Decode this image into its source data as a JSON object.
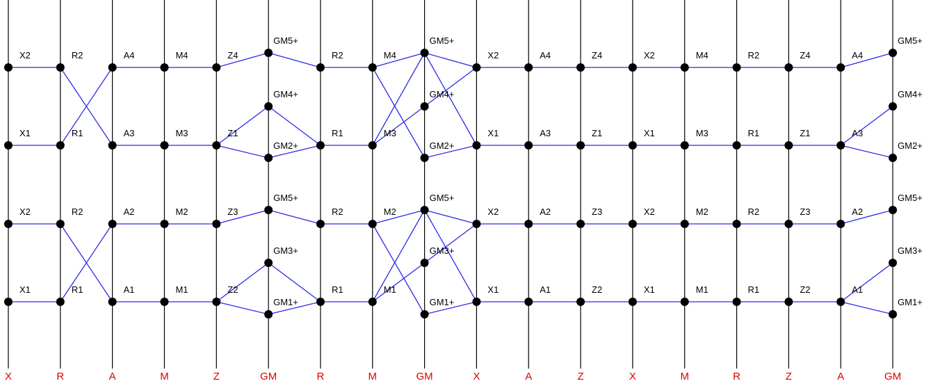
{
  "diagram": {
    "colors": {
      "vertical_lines": "#000000",
      "edges": "#2a2ae8",
      "nodes": "#000000",
      "axis_labels": "#dd0000"
    },
    "columns": [
      "X",
      "R",
      "A",
      "M",
      "Z",
      "GM",
      "R",
      "M",
      "GM",
      "X",
      "A",
      "Z",
      "X",
      "M",
      "R",
      "Z",
      "A",
      "GM"
    ],
    "nodes": [
      {
        "id": "c0-X2a",
        "col": 0,
        "band": "hi",
        "label": "X2"
      },
      {
        "id": "c0-X1a",
        "col": 0,
        "band": "lo",
        "label": "X1"
      },
      {
        "id": "c1-R2a",
        "col": 1,
        "band": "hi",
        "label": "R2"
      },
      {
        "id": "c1-R1a",
        "col": 1,
        "band": "lo",
        "label": "R1"
      },
      {
        "id": "c2-A4",
        "col": 2,
        "band": "hi",
        "label": "A4"
      },
      {
        "id": "c2-A3",
        "col": 2,
        "band": "lo",
        "label": "A3"
      },
      {
        "id": "c3-M4",
        "col": 3,
        "band": "hi",
        "label": "M4"
      },
      {
        "id": "c3-M3",
        "col": 3,
        "band": "lo",
        "label": "M3"
      },
      {
        "id": "c4-Z4",
        "col": 4,
        "band": "hi",
        "label": "Z4"
      },
      {
        "id": "c4-Z1",
        "col": 4,
        "band": "lo",
        "label": "Z1"
      },
      {
        "id": "c5-GM5a",
        "col": 5,
        "band": "top",
        "label": "GM5+"
      },
      {
        "id": "c5-GM4",
        "col": 5,
        "band": "mid",
        "label": "GM4+"
      },
      {
        "id": "c5-GM2",
        "col": 5,
        "band": "bot",
        "label": "GM2+"
      },
      {
        "id": "c6-R2a",
        "col": 6,
        "band": "hi",
        "label": "R2"
      },
      {
        "id": "c6-R1a",
        "col": 6,
        "band": "lo",
        "label": "R1"
      },
      {
        "id": "c7-M4",
        "col": 7,
        "band": "hi",
        "label": "M4"
      },
      {
        "id": "c7-M3",
        "col": 7,
        "band": "lo",
        "label": "M3"
      },
      {
        "id": "c8-GM5a",
        "col": 8,
        "band": "top",
        "label": "GM5+"
      },
      {
        "id": "c8-GM4",
        "col": 8,
        "band": "mid",
        "label": "GM4+"
      },
      {
        "id": "c8-GM2",
        "col": 8,
        "band": "bot",
        "label": "GM2+"
      },
      {
        "id": "c9-X2a",
        "col": 9,
        "band": "hi",
        "label": "X2"
      },
      {
        "id": "c9-X1a",
        "col": 9,
        "band": "lo",
        "label": "X1"
      },
      {
        "id": "c10-A4",
        "col": 10,
        "band": "hi",
        "label": "A4"
      },
      {
        "id": "c10-A3",
        "col": 10,
        "band": "lo",
        "label": "A3"
      },
      {
        "id": "c11-Z4",
        "col": 11,
        "band": "hi",
        "label": "Z4"
      },
      {
        "id": "c11-Z1",
        "col": 11,
        "band": "lo",
        "label": "Z1"
      },
      {
        "id": "c12-X2a",
        "col": 12,
        "band": "hi",
        "label": "X2"
      },
      {
        "id": "c12-X1a",
        "col": 12,
        "band": "lo",
        "label": "X1"
      },
      {
        "id": "c13-M4",
        "col": 13,
        "band": "hi",
        "label": "M4"
      },
      {
        "id": "c13-M3",
        "col": 13,
        "band": "lo",
        "label": "M3"
      },
      {
        "id": "c14-R2a",
        "col": 14,
        "band": "hi",
        "label": "R2"
      },
      {
        "id": "c14-R1a",
        "col": 14,
        "band": "lo",
        "label": "R1"
      },
      {
        "id": "c15-Z4",
        "col": 15,
        "band": "hi",
        "label": "Z4"
      },
      {
        "id": "c15-Z1",
        "col": 15,
        "band": "lo",
        "label": "Z1"
      },
      {
        "id": "c16-A4",
        "col": 16,
        "band": "hi",
        "label": "A4"
      },
      {
        "id": "c16-A3",
        "col": 16,
        "band": "lo",
        "label": "A3"
      },
      {
        "id": "c17-GM5a",
        "col": 17,
        "band": "top",
        "label": "GM5+"
      },
      {
        "id": "c17-GM4",
        "col": 17,
        "band": "mid",
        "label": "GM4+"
      },
      {
        "id": "c17-GM2",
        "col": 17,
        "band": "bot",
        "label": "GM2+"
      },
      {
        "id": "c0-X2b",
        "col": 0,
        "band": "hi2",
        "label": "X2"
      },
      {
        "id": "c0-X1b",
        "col": 0,
        "band": "lo2",
        "label": "X1"
      },
      {
        "id": "c1-R2b",
        "col": 1,
        "band": "hi2",
        "label": "R2"
      },
      {
        "id": "c1-R1b",
        "col": 1,
        "band": "lo2",
        "label": "R1"
      },
      {
        "id": "c2-A2",
        "col": 2,
        "band": "hi2",
        "label": "A2"
      },
      {
        "id": "c2-A1",
        "col": 2,
        "band": "lo2",
        "label": "A1"
      },
      {
        "id": "c3-M2",
        "col": 3,
        "band": "hi2",
        "label": "M2"
      },
      {
        "id": "c3-M1",
        "col": 3,
        "band": "lo2",
        "label": "M1"
      },
      {
        "id": "c4-Z3",
        "col": 4,
        "band": "hi2",
        "label": "Z3"
      },
      {
        "id": "c4-Z2",
        "col": 4,
        "band": "lo2",
        "label": "Z2"
      },
      {
        "id": "c5-GM5b",
        "col": 5,
        "band": "top2",
        "label": "GM5+"
      },
      {
        "id": "c5-GM3",
        "col": 5,
        "band": "mid2",
        "label": "GM3+"
      },
      {
        "id": "c5-GM1",
        "col": 5,
        "band": "bot2",
        "label": "GM1+"
      },
      {
        "id": "c6-R2b",
        "col": 6,
        "band": "hi2",
        "label": "R2"
      },
      {
        "id": "c6-R1b",
        "col": 6,
        "band": "lo2",
        "label": "R1"
      },
      {
        "id": "c7-M2",
        "col": 7,
        "band": "hi2",
        "label": "M2"
      },
      {
        "id": "c7-M1",
        "col": 7,
        "band": "lo2",
        "label": "M1"
      },
      {
        "id": "c8-GM5b",
        "col": 8,
        "band": "top2",
        "label": "GM5+"
      },
      {
        "id": "c8-GM3",
        "col": 8,
        "band": "mid2",
        "label": "GM3+"
      },
      {
        "id": "c8-GM1",
        "col": 8,
        "band": "bot2",
        "label": "GM1+"
      },
      {
        "id": "c9-X2b",
        "col": 9,
        "band": "hi2",
        "label": "X2"
      },
      {
        "id": "c9-X1b",
        "col": 9,
        "band": "lo2",
        "label": "X1"
      },
      {
        "id": "c10-A2",
        "col": 10,
        "band": "hi2",
        "label": "A2"
      },
      {
        "id": "c10-A1",
        "col": 10,
        "band": "lo2",
        "label": "A1"
      },
      {
        "id": "c11-Z3",
        "col": 11,
        "band": "hi2",
        "label": "Z3"
      },
      {
        "id": "c11-Z2",
        "col": 11,
        "band": "lo2",
        "label": "Z2"
      },
      {
        "id": "c12-X2b",
        "col": 12,
        "band": "hi2",
        "label": "X2"
      },
      {
        "id": "c12-X1b",
        "col": 12,
        "band": "lo2",
        "label": "X1"
      },
      {
        "id": "c13-M2",
        "col": 13,
        "band": "hi2",
        "label": "M2"
      },
      {
        "id": "c13-M1",
        "col": 13,
        "band": "lo2",
        "label": "M1"
      },
      {
        "id": "c14-R2b",
        "col": 14,
        "band": "hi2",
        "label": "R2"
      },
      {
        "id": "c14-R1b",
        "col": 14,
        "band": "lo2",
        "label": "R1"
      },
      {
        "id": "c15-Z3",
        "col": 15,
        "band": "hi2",
        "label": "Z3"
      },
      {
        "id": "c15-Z2",
        "col": 15,
        "band": "lo2",
        "label": "Z2"
      },
      {
        "id": "c16-A2",
        "col": 16,
        "band": "hi2",
        "label": "A2"
      },
      {
        "id": "c16-A1",
        "col": 16,
        "band": "lo2",
        "label": "A1"
      },
      {
        "id": "c17-GM5b",
        "col": 17,
        "band": "top2",
        "label": "GM5+"
      },
      {
        "id": "c17-GM3",
        "col": 17,
        "band": "mid2",
        "label": "GM3+"
      },
      {
        "id": "c17-GM1",
        "col": 17,
        "band": "bot2",
        "label": "GM1+"
      }
    ],
    "edges": [
      [
        "c0-X2a",
        "c1-R2a"
      ],
      [
        "c0-X1a",
        "c1-R1a"
      ],
      [
        "c1-R2a",
        "c2-A3"
      ],
      [
        "c1-R1a",
        "c2-A4"
      ],
      [
        "c2-A4",
        "c3-M4"
      ],
      [
        "c2-A3",
        "c3-M3"
      ],
      [
        "c3-M4",
        "c4-Z4"
      ],
      [
        "c3-M3",
        "c4-Z1"
      ],
      [
        "c4-Z4",
        "c5-GM5a"
      ],
      [
        "c4-Z1",
        "c5-GM4"
      ],
      [
        "c4-Z1",
        "c5-GM2"
      ],
      [
        "c5-GM5a",
        "c6-R2a"
      ],
      [
        "c5-GM4",
        "c6-R1a"
      ],
      [
        "c5-GM2",
        "c6-R1a"
      ],
      [
        "c6-R2a",
        "c7-M4"
      ],
      [
        "c6-R1a",
        "c7-M3"
      ],
      [
        "c7-M4",
        "c8-GM5a"
      ],
      [
        "c7-M4",
        "c8-GM2"
      ],
      [
        "c7-M3",
        "c8-GM5a"
      ],
      [
        "c7-M3",
        "c8-GM4"
      ],
      [
        "c8-GM5a",
        "c9-X2a"
      ],
      [
        "c8-GM5a",
        "c9-X1a"
      ],
      [
        "c8-GM4",
        "c9-X2a"
      ],
      [
        "c8-GM2",
        "c9-X1a"
      ],
      [
        "c9-X2a",
        "c10-A4"
      ],
      [
        "c9-X1a",
        "c10-A3"
      ],
      [
        "c10-A4",
        "c11-Z4"
      ],
      [
        "c10-A3",
        "c11-Z1"
      ],
      [
        "c11-Z4",
        "c12-X2a"
      ],
      [
        "c11-Z1",
        "c12-X1a"
      ],
      [
        "c12-X2a",
        "c13-M4"
      ],
      [
        "c12-X1a",
        "c13-M3"
      ],
      [
        "c13-M4",
        "c14-R2a"
      ],
      [
        "c13-M3",
        "c14-R1a"
      ],
      [
        "c14-R2a",
        "c15-Z4"
      ],
      [
        "c14-R1a",
        "c15-Z1"
      ],
      [
        "c15-Z4",
        "c16-A4"
      ],
      [
        "c15-Z1",
        "c16-A3"
      ],
      [
        "c16-A4",
        "c17-GM5a"
      ],
      [
        "c16-A3",
        "c17-GM4"
      ],
      [
        "c16-A3",
        "c17-GM2"
      ],
      [
        "c0-X2b",
        "c1-R2b"
      ],
      [
        "c0-X1b",
        "c1-R1b"
      ],
      [
        "c1-R2b",
        "c2-A1"
      ],
      [
        "c1-R1b",
        "c2-A2"
      ],
      [
        "c2-A2",
        "c3-M2"
      ],
      [
        "c2-A1",
        "c3-M1"
      ],
      [
        "c3-M2",
        "c4-Z3"
      ],
      [
        "c3-M1",
        "c4-Z2"
      ],
      [
        "c4-Z3",
        "c5-GM5b"
      ],
      [
        "c4-Z2",
        "c5-GM3"
      ],
      [
        "c4-Z2",
        "c5-GM1"
      ],
      [
        "c5-GM5b",
        "c6-R2b"
      ],
      [
        "c5-GM3",
        "c6-R1b"
      ],
      [
        "c5-GM1",
        "c6-R1b"
      ],
      [
        "c6-R2b",
        "c7-M2"
      ],
      [
        "c6-R1b",
        "c7-M1"
      ],
      [
        "c7-M2",
        "c8-GM5b"
      ],
      [
        "c7-M2",
        "c8-GM1"
      ],
      [
        "c7-M1",
        "c8-GM5b"
      ],
      [
        "c7-M1",
        "c8-GM3"
      ],
      [
        "c8-GM5b",
        "c9-X2b"
      ],
      [
        "c8-GM5b",
        "c9-X1b"
      ],
      [
        "c8-GM3",
        "c9-X2b"
      ],
      [
        "c8-GM1",
        "c9-X1b"
      ],
      [
        "c9-X2b",
        "c10-A2"
      ],
      [
        "c9-X1b",
        "c10-A1"
      ],
      [
        "c10-A2",
        "c11-Z3"
      ],
      [
        "c10-A1",
        "c11-Z2"
      ],
      [
        "c11-Z3",
        "c12-X2b"
      ],
      [
        "c11-Z2",
        "c12-X1b"
      ],
      [
        "c12-X2b",
        "c13-M2"
      ],
      [
        "c12-X1b",
        "c13-M1"
      ],
      [
        "c13-M2",
        "c14-R2b"
      ],
      [
        "c13-M1",
        "c14-R1b"
      ],
      [
        "c14-R2b",
        "c15-Z3"
      ],
      [
        "c14-R1b",
        "c15-Z2"
      ],
      [
        "c15-Z3",
        "c16-A2"
      ],
      [
        "c15-Z2",
        "c16-A1"
      ],
      [
        "c16-A2",
        "c17-GM5b"
      ],
      [
        "c16-A1",
        "c17-GM3"
      ],
      [
        "c16-A1",
        "c17-GM1"
      ]
    ]
  }
}
